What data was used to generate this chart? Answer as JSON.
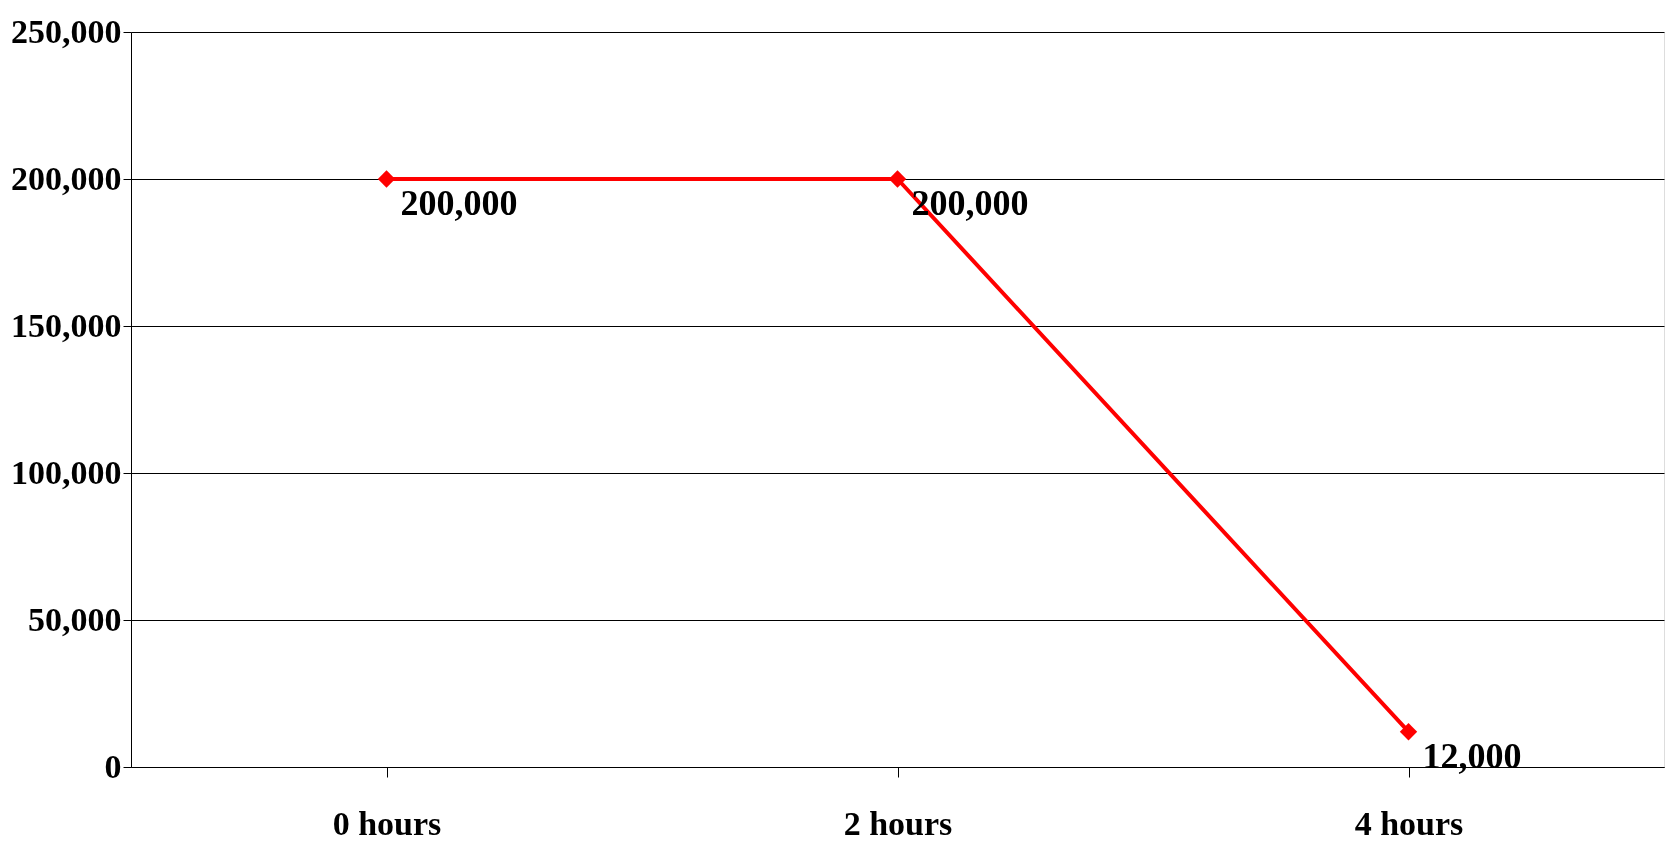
{
  "chart_data": {
    "type": "line",
    "categories": [
      "0 hours",
      "2 hours",
      "4 hours"
    ],
    "series": [
      {
        "color": "#ff0000",
        "values": [
          200000,
          200000,
          12000
        ],
        "value_labels": [
          "200,000",
          "200,000",
          "12,000"
        ]
      }
    ],
    "ylim": [
      0,
      250000
    ],
    "yticks": [
      {
        "value": 0,
        "label": "0"
      },
      {
        "value": 50000,
        "label": "50,000"
      },
      {
        "value": 100000,
        "label": "100,000"
      },
      {
        "value": 150000,
        "label": "150,000"
      },
      {
        "value": 200000,
        "label": "200,000"
      },
      {
        "value": 250000,
        "label": "250,000"
      }
    ],
    "grid": "y",
    "marker": "diamond",
    "line_style": "solid"
  }
}
